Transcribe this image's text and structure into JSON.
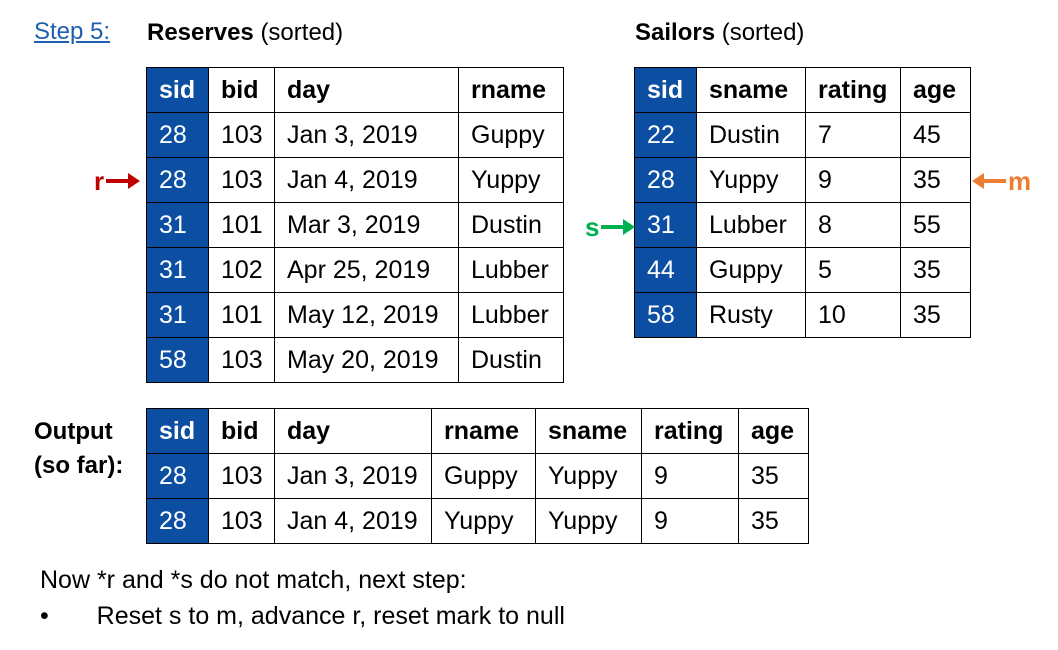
{
  "step_label": "Step 5:",
  "reserves": {
    "title": "Reserves",
    "qualifier": "(sorted)",
    "columns": [
      "sid",
      "bid",
      "day",
      "rname"
    ],
    "rows": [
      [
        "28",
        "103",
        "Jan 3, 2019",
        "Guppy"
      ],
      [
        "28",
        "103",
        "Jan 4, 2019",
        "Yuppy"
      ],
      [
        "31",
        "101",
        "Mar 3, 2019",
        "Dustin"
      ],
      [
        "31",
        "102",
        "Apr 25, 2019",
        "Lubber"
      ],
      [
        "31",
        "101",
        "May 12, 2019",
        "Lubber"
      ],
      [
        "58",
        "103",
        "May 20, 2019",
        "Dustin"
      ]
    ]
  },
  "sailors": {
    "title": "Sailors",
    "qualifier": "(sorted)",
    "columns": [
      "sid",
      "sname",
      "rating",
      "age"
    ],
    "rows": [
      [
        "22",
        "Dustin",
        "7",
        "45"
      ],
      [
        "28",
        "Yuppy",
        "9",
        "35"
      ],
      [
        "31",
        "Lubber",
        "8",
        "55"
      ],
      [
        "44",
        "Guppy",
        "5",
        "35"
      ],
      [
        "58",
        "Rusty",
        "10",
        "35"
      ]
    ]
  },
  "output": {
    "label_line1": "Output",
    "label_line2": "(so far):",
    "columns": [
      "sid",
      "bid",
      "day",
      "rname",
      "sname",
      "rating",
      "age"
    ],
    "rows": [
      [
        "28",
        "103",
        "Jan 3, 2019",
        "Guppy",
        "Yuppy",
        "9",
        "35"
      ],
      [
        "28",
        "103",
        "Jan 4, 2019",
        "Yuppy",
        "Yuppy",
        "9",
        "35"
      ]
    ]
  },
  "pointers": {
    "r": {
      "label": "r",
      "color": "#c00000",
      "row": 2
    },
    "s": {
      "label": "s",
      "color": "#00b050",
      "row": 3
    },
    "m": {
      "label": "m",
      "color": "#ed7d31",
      "row": 2
    }
  },
  "notes": {
    "line1": "Now *r and *s do not match, next step:",
    "bullet": "•",
    "line2": "Reset s to m, advance r, reset mark to null"
  },
  "colors": {
    "key_column": "#0b4ea2",
    "step_link": "#1f5fb0"
  }
}
